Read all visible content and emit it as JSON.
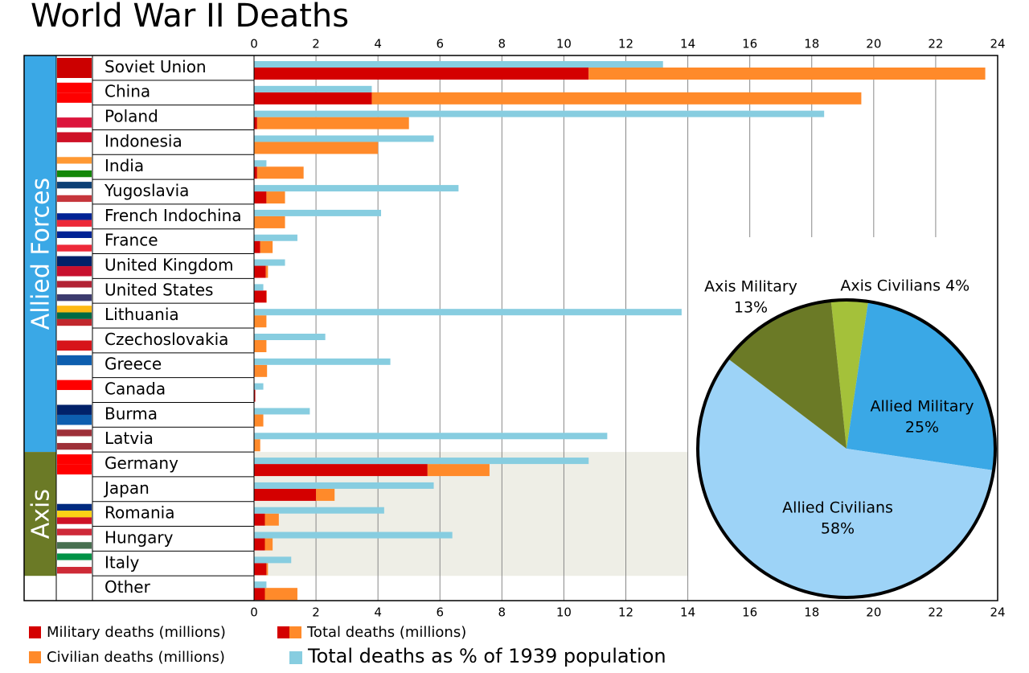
{
  "chart_data": [
    {
      "type": "bar",
      "orientation": "horizontal",
      "title": "World War II Deaths",
      "categories": [
        "Soviet Union",
        "China",
        "Poland",
        "Indonesia",
        "India",
        "Yugoslavia",
        "French Indochina",
        "France",
        "United Kingdom",
        "United States",
        "Lithuania",
        "Czechoslovakia",
        "Greece",
        "Canada",
        "Burma",
        "Latvia",
        "Germany",
        "Japan",
        "Romania",
        "Hungary",
        "Italy",
        "Other"
      ],
      "groups": [
        {
          "name": "Allied Forces",
          "count": 16,
          "color": "#3aa8e6"
        },
        {
          "name": "Axis",
          "count": 5,
          "color": "#6b7a26",
          "shade": "#eeeee6"
        }
      ],
      "series": [
        {
          "name": "Military deaths (millions)",
          "color": "#d40000",
          "stack": true,
          "values": [
            10.8,
            3.8,
            0.1,
            0,
            0.1,
            0.4,
            0,
            0.2,
            0.38,
            0.4,
            0,
            0,
            0.02,
            0.04,
            0,
            0,
            5.6,
            2.0,
            0.35,
            0.35,
            0.4,
            0.35
          ]
        },
        {
          "name": "Civilian deaths (millions)",
          "color": "#ff8a2a",
          "stack": true,
          "values": [
            12.8,
            15.8,
            4.9,
            4.0,
            1.5,
            0.6,
            1.0,
            0.4,
            0.07,
            0.01,
            0.4,
            0.4,
            0.4,
            0,
            0.3,
            0.2,
            2.0,
            0.6,
            0.45,
            0.25,
            0.05,
            1.05
          ]
        },
        {
          "name": "Total deaths as % of 1939 population",
          "color": "#87cde0",
          "stack": false,
          "values": [
            13.2,
            3.8,
            18.4,
            5.8,
            0.4,
            6.6,
            4.1,
            1.4,
            1.0,
            0.3,
            13.8,
            2.3,
            4.4,
            0.3,
            1.8,
            11.4,
            10.8,
            5.8,
            4.2,
            6.4,
            1.2,
            0.4
          ]
        }
      ],
      "total_label": "Total deaths (millions)",
      "xlim": [
        0,
        24
      ],
      "xticks": [
        0,
        2,
        4,
        6,
        8,
        10,
        12,
        14,
        16,
        18,
        20,
        22,
        24
      ],
      "grid": true
    },
    {
      "type": "pie",
      "categories": [
        "Axis Civilians",
        "Allied Military",
        "Allied Civilians",
        "Axis Military"
      ],
      "values": [
        4,
        25,
        58,
        13
      ],
      "value_labels": [
        "4%",
        "25%",
        "58%",
        "13%"
      ],
      "colors": [
        "#a4c13a",
        "#3aa8e6",
        "#9dd3f7",
        "#6b7a26"
      ]
    }
  ]
}
